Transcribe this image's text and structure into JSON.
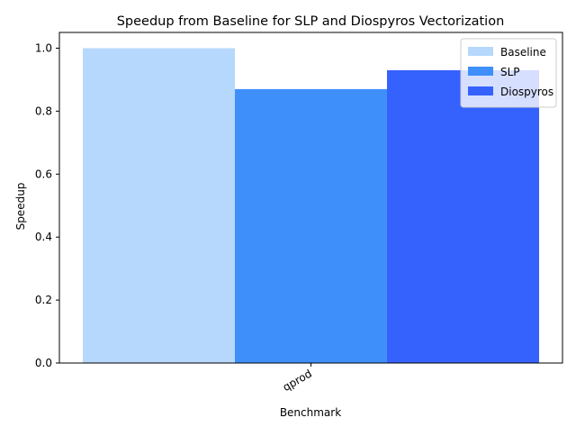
{
  "chart_data": {
    "type": "bar",
    "title": "Speedup from Baseline for SLP and Diospyros Vectorization",
    "xlabel": "Benchmark",
    "ylabel": "Speedup",
    "categories": [
      "qprod"
    ],
    "series": [
      {
        "name": "Baseline",
        "values": [
          1.0
        ],
        "color": "#b7d8fd"
      },
      {
        "name": "SLP",
        "values": [
          0.87
        ],
        "color": "#3f8ffb"
      },
      {
        "name": "Diospyros",
        "values": [
          0.93
        ],
        "color": "#3562fd"
      }
    ],
    "ylim": [
      0,
      1.05
    ],
    "yticks": [
      "0.0",
      "0.2",
      "0.4",
      "0.6",
      "0.8",
      "1.0"
    ],
    "grid": false,
    "legend": "top-right"
  }
}
